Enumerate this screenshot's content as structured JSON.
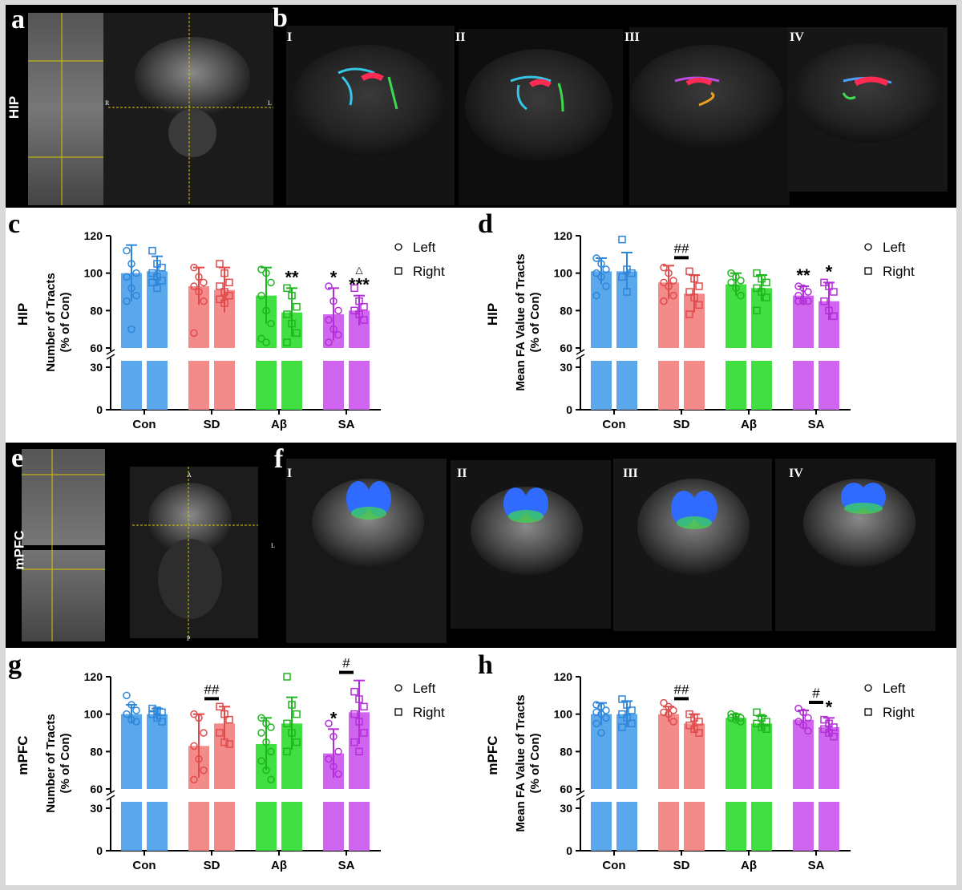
{
  "figure": {
    "panels": {
      "a": {
        "letter": "a",
        "region": "HIP"
      },
      "b": {
        "letter": "b",
        "groups": [
          "I",
          "II",
          "III",
          "IV"
        ]
      },
      "e": {
        "letter": "e",
        "region": "mPFC"
      },
      "f": {
        "letter": "f",
        "groups": [
          "I",
          "II",
          "III",
          "IV"
        ]
      }
    },
    "orientation": {
      "R": "R",
      "L": "L",
      "A": "A",
      "P": "P"
    }
  },
  "colors": {
    "Con": "#5aa7ec",
    "SD": "#f48b8b",
    "Abeta": "#41df41",
    "SA": "#d066f0",
    "Con_dark": "#2e86d9",
    "SD_dark": "#e04a4a",
    "Abeta_dark": "#1fb51f",
    "SA_dark": "#b22fd8"
  },
  "legend": {
    "left": "Left",
    "right": "Right"
  },
  "chart_data": [
    {
      "letter": "c",
      "type": "bar",
      "region": "HIP",
      "ylabel_line1": "Number of Tracts",
      "ylabel_line2": "(% of Con)",
      "categories": [
        "Con",
        "SD",
        "Aβ",
        "SA"
      ],
      "yticks_upper": [
        60,
        80,
        100,
        120
      ],
      "yticks_lower": [
        0,
        30
      ],
      "series": [
        {
          "name": "Left",
          "values": [
            100,
            93,
            88,
            78
          ],
          "err": [
            15,
            10,
            15,
            14
          ],
          "points": [
            [
              112,
              105,
              100,
              98,
              92,
              88,
              85,
              70
            ],
            [
              103,
              98,
              95,
              93,
              90,
              85,
              68
            ],
            [
              102,
              100,
              95,
              88,
              80,
              73,
              65,
              63
            ],
            [
              93,
              85,
              80,
              75,
              70,
              67,
              63
            ]
          ]
        },
        {
          "name": "Right",
          "values": [
            101,
            91,
            79,
            80
          ],
          "err": [
            8,
            12,
            13,
            8
          ],
          "points": [
            [
              112,
              105,
              103,
              100,
              98,
              96,
              95,
              92
            ],
            [
              105,
              100,
              95,
              93,
              90,
              88,
              86,
              84
            ],
            [
              92,
              88,
              82,
              78,
              73,
              68,
              63
            ],
            [
              92,
              85,
              82,
              80,
              78,
              75
            ]
          ]
        }
      ],
      "annotations": [
        {
          "cat": 2,
          "side": "right",
          "text": "**"
        },
        {
          "cat": 3,
          "side": "left",
          "text": "*"
        },
        {
          "cat": 3,
          "side": "right",
          "text": "***"
        },
        {
          "cat": 3,
          "side": "right",
          "text": "△",
          "small": true
        }
      ],
      "hash_marks": []
    },
    {
      "letter": "d",
      "type": "bar",
      "region": "HIP",
      "ylabel_line1": "Mean FA Value of Tracts",
      "ylabel_line2": "(% of Con)",
      "categories": [
        "Con",
        "SD",
        "Aβ",
        "SA"
      ],
      "yticks_upper": [
        60,
        80,
        100,
        120
      ],
      "yticks_lower": [
        0,
        30
      ],
      "series": [
        {
          "name": "Left",
          "values": [
            101,
            95,
            94,
            88
          ],
          "err": [
            7,
            9,
            6,
            5
          ],
          "points": [
            [
              108,
              105,
              102,
              100,
              98,
              93,
              88
            ],
            [
              103,
              100,
              96,
              95,
              93,
              88,
              85
            ],
            [
              100,
              98,
              96,
              95,
              92,
              88
            ],
            [
              93,
              92,
              90,
              88,
              85,
              85,
              85
            ]
          ]
        },
        {
          "name": "Right",
          "values": [
            101,
            89,
            92,
            85
          ],
          "err": [
            10,
            10,
            7,
            10
          ],
          "points": [
            [
              118,
              102,
              100,
              98,
              90
            ],
            [
              101,
              97,
              93,
              90,
              87,
              83,
              78
            ],
            [
              100,
              97,
              95,
              92,
              90,
              87,
              80
            ],
            [
              95,
              93,
              90,
              85,
              80,
              77
            ]
          ]
        }
      ],
      "annotations": [
        {
          "cat": 3,
          "side": "left",
          "text": "**"
        },
        {
          "cat": 3,
          "side": "right",
          "text": "*"
        }
      ],
      "hash_marks": [
        {
          "cat": 1,
          "text": "##"
        }
      ]
    },
    {
      "letter": "g",
      "type": "bar",
      "region": "mPFC",
      "ylabel_line1": "Number of Tracts",
      "ylabel_line2": "(% of Con)",
      "categories": [
        "Con",
        "SD",
        "Aβ",
        "SA"
      ],
      "yticks_upper": [
        60,
        80,
        100,
        120
      ],
      "yticks_lower": [
        0,
        30
      ],
      "series": [
        {
          "name": "Left",
          "values": [
            100,
            83,
            84,
            79
          ],
          "err": [
            5,
            17,
            14,
            13
          ],
          "points": [
            [
              110,
              105,
              102,
              100,
              97,
              96
            ],
            [
              100,
              98,
              90,
              83,
              76,
              70,
              65
            ],
            [
              98,
              95,
              93,
              90,
              85,
              80,
              75,
              70,
              65
            ],
            [
              95,
              88,
              80,
              76,
              72,
              68
            ]
          ]
        },
        {
          "name": "Right",
          "values": [
            100,
            95,
            95,
            101
          ],
          "err": [
            3,
            9,
            14,
            17
          ],
          "points": [
            [
              103,
              102,
              101,
              100,
              98,
              96
            ],
            [
              104,
              100,
              97,
              90,
              85,
              84
            ],
            [
              120,
              105,
              100,
              95,
              90,
              85,
              80
            ],
            [
              112,
              108,
              104,
              100,
              96,
              90,
              85,
              80
            ]
          ]
        }
      ],
      "annotations": [
        {
          "cat": 3,
          "side": "left",
          "text": "*"
        }
      ],
      "hash_marks": [
        {
          "cat": 1,
          "text": "##"
        },
        {
          "cat": 3,
          "text": "#"
        }
      ]
    },
    {
      "letter": "h",
      "type": "bar",
      "region": "mPFC",
      "ylabel_line1": "Mean FA Value of Tracts",
      "ylabel_line2": "(% of Con)",
      "categories": [
        "Con",
        "SD",
        "Aβ",
        "SA"
      ],
      "yticks_upper": [
        60,
        80,
        100,
        120
      ],
      "yticks_lower": [
        0,
        30
      ],
      "series": [
        {
          "name": "Left",
          "values": [
            100,
            100,
            98,
            97
          ],
          "err": [
            6,
            4,
            2,
            5
          ],
          "points": [
            [
              105,
              104,
              102,
              101,
              100,
              98,
              95,
              90
            ],
            [
              106,
              104,
              102,
              101,
              100,
              96
            ],
            [
              100,
              99,
              98,
              98,
              97,
              96
            ],
            [
              103,
              101,
              98,
              96,
              94,
              91
            ]
          ]
        },
        {
          "name": "Right",
          "values": [
            100,
            95,
            95,
            93
          ],
          "err": [
            7,
            5,
            4,
            5
          ],
          "points": [
            [
              108,
              105,
              102,
              100,
              98,
              95,
              93
            ],
            [
              100,
              98,
              96,
              94,
              92,
              90
            ],
            [
              101,
              98,
              96,
              95,
              93,
              92
            ],
            [
              97,
              95,
              93,
              92,
              90,
              88
            ]
          ]
        }
      ],
      "annotations": [
        {
          "cat": 3,
          "side": "right",
          "text": "*"
        }
      ],
      "hash_marks": [
        {
          "cat": 1,
          "text": "##"
        },
        {
          "cat": 3,
          "text": "#"
        }
      ]
    }
  ]
}
